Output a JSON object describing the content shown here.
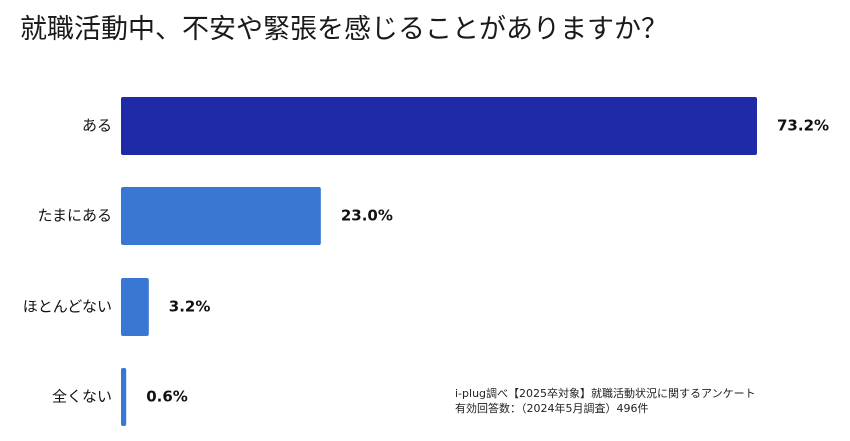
{
  "chart_data": {
    "type": "bar",
    "orientation": "horizontal",
    "title": "就職活動中、不安や緊張を感じることがありますか？",
    "categories": [
      "ある",
      "たまにある",
      "ほとんどない",
      "全くない"
    ],
    "values": [
      73.2,
      23.0,
      3.2,
      0.6
    ],
    "value_labels": [
      "73.2%",
      "23.0%",
      "3.2%",
      "0.6%"
    ],
    "xlim": [
      0,
      73.2
    ],
    "grid": false,
    "legend": "none",
    "colors": [
      "#1f2aa8",
      "#3878d4",
      "#3878d4",
      "#3878d4"
    ]
  },
  "source": {
    "line1": "i-plug調べ【2025卒対象】就職活動状況に関するアンケート",
    "line2": "有効回答数：（2024年5月調査）496件"
  }
}
